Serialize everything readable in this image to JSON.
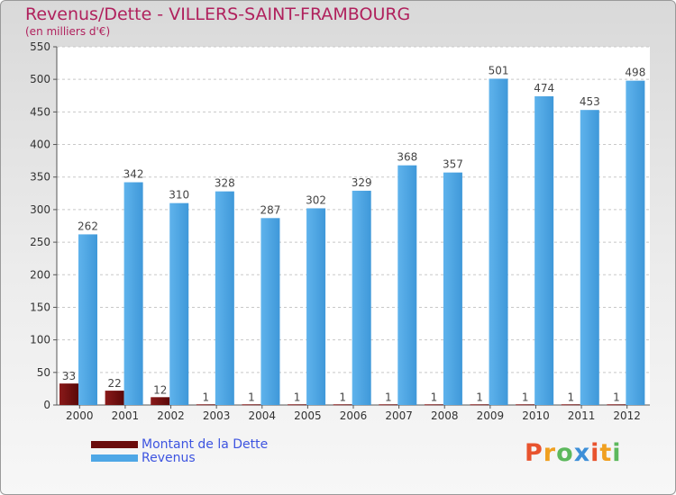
{
  "title": "Revenus/Dette - VILLERS-SAINT-FRAMBOURG",
  "subtitle": "(en milliers d'€)",
  "colors": {
    "dette": "#6b0c0c",
    "revenus": "#4ea7e6",
    "title": "#b0215d",
    "legend_text": "#3d54e0"
  },
  "legend": [
    {
      "label": "Montant de la Dette",
      "color": "#6b0c0c"
    },
    {
      "label": "Revenus",
      "color": "#4ea7e6"
    }
  ],
  "logo": {
    "text": "Proxiti",
    "icon": "proxiti-logo"
  },
  "chart_data": {
    "type": "bar",
    "categories": [
      "2000",
      "2001",
      "2002",
      "2003",
      "2004",
      "2005",
      "2006",
      "2007",
      "2008",
      "2009",
      "2010",
      "2011",
      "2012"
    ],
    "series": [
      {
        "name": "Montant de la Dette",
        "values": [
          33,
          22,
          12,
          1,
          1,
          1,
          1,
          1,
          1,
          1,
          1,
          1,
          1
        ]
      },
      {
        "name": "Revenus",
        "values": [
          262,
          342,
          310,
          328,
          287,
          302,
          329,
          368,
          357,
          501,
          474,
          453,
          498
        ]
      }
    ],
    "ylim": [
      0,
      550
    ],
    "yticks": [
      0,
      50,
      100,
      150,
      200,
      250,
      300,
      350,
      400,
      450,
      500,
      550
    ],
    "grid": true,
    "legend_position": "bottom-left"
  }
}
